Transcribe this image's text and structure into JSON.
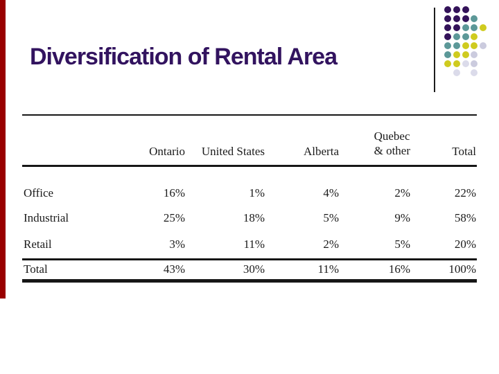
{
  "slide": {
    "title": "Diversification of Rental Area",
    "title_color": "#32135F",
    "background_color": "#FFFFFF",
    "accent_bar_color": "#990000"
  },
  "decoration": {
    "divider_color": "#1C1C1C",
    "dot_colors": {
      "P": "#331259",
      "T": "#5C9898",
      "Y": "#CFCB1F",
      "L": "#CBCBDE",
      "l": "#DBDBEA"
    },
    "dot_grid": [
      "PPP..",
      "PPPT.",
      "PPTTY",
      "PTTY.",
      "TTYYL",
      "TYYL.",
      "YYlL.",
      ".l.l."
    ]
  },
  "table": {
    "column_headers": [
      "Ontario",
      "United States",
      "Alberta",
      "Quebec & other",
      "Total"
    ],
    "quebec_header_line1": "Quebec",
    "quebec_header_line2": "& other",
    "rows": [
      {
        "label": "Office",
        "values": [
          "16%",
          "1%",
          "4%",
          "2%",
          "22%"
        ]
      },
      {
        "label": "Industrial",
        "values": [
          "25%",
          "18%",
          "5%",
          "9%",
          "58%"
        ]
      },
      {
        "label": "Retail",
        "values": [
          "3%",
          "11%",
          "2%",
          "5%",
          "20%"
        ]
      },
      {
        "label": "Total",
        "values": [
          "43%",
          "30%",
          "11%",
          "16%",
          "100%"
        ]
      }
    ]
  },
  "chart_data": {
    "type": "table",
    "title": "Diversification of Rental Area",
    "columns": [
      "Ontario",
      "United States",
      "Alberta",
      "Quebec & other",
      "Total"
    ],
    "row_labels": [
      "Office",
      "Industrial",
      "Retail",
      "Total"
    ],
    "values_percent": [
      [
        16,
        1,
        4,
        2,
        22
      ],
      [
        25,
        18,
        5,
        9,
        58
      ],
      [
        3,
        11,
        2,
        5,
        20
      ],
      [
        43,
        30,
        11,
        16,
        100
      ]
    ]
  }
}
